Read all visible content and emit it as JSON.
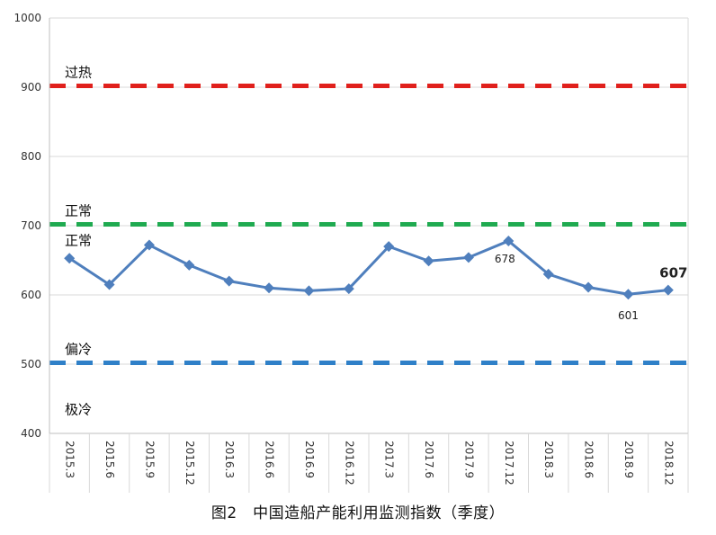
{
  "chart_data": {
    "type": "line",
    "caption": "图2　中国造船产能利用监测指数（季度）",
    "categories": [
      "2015.3",
      "2015.6",
      "2015.9",
      "2015.12",
      "2016.3",
      "2016.6",
      "2016.9",
      "2016.12",
      "2017.3",
      "2017.6",
      "2017.9",
      "2017.12",
      "2018.3",
      "2018.6",
      "2018.9",
      "2018.12"
    ],
    "series": [
      {
        "values": [
          653,
          615,
          672,
          643,
          620,
          610,
          606,
          609,
          670,
          649,
          654,
          678,
          630,
          611,
          601,
          607
        ],
        "color": "#4f7fbd"
      }
    ],
    "ylim": [
      400,
      1000
    ],
    "yticks": [
      "400",
      "500",
      "600",
      "700",
      "800",
      "900",
      "1000"
    ],
    "grid": true,
    "data_labels": [
      {
        "index": 11,
        "text": "678",
        "bold": false
      },
      {
        "index": 14,
        "text": "601",
        "bold": false
      },
      {
        "index": 15,
        "text": "607",
        "bold": true
      }
    ],
    "thresholds": [
      {
        "value": 902,
        "color": "#e0201c",
        "label": "过热"
      },
      {
        "value": 702,
        "color": "#1faa50",
        "label": "正常"
      },
      {
        "value": 502,
        "color": "#2f80c8",
        "label": "偏冷"
      }
    ],
    "zone_labels": [
      {
        "value": 680,
        "text": "正常"
      },
      {
        "value": 436,
        "text": "极冷"
      }
    ]
  }
}
